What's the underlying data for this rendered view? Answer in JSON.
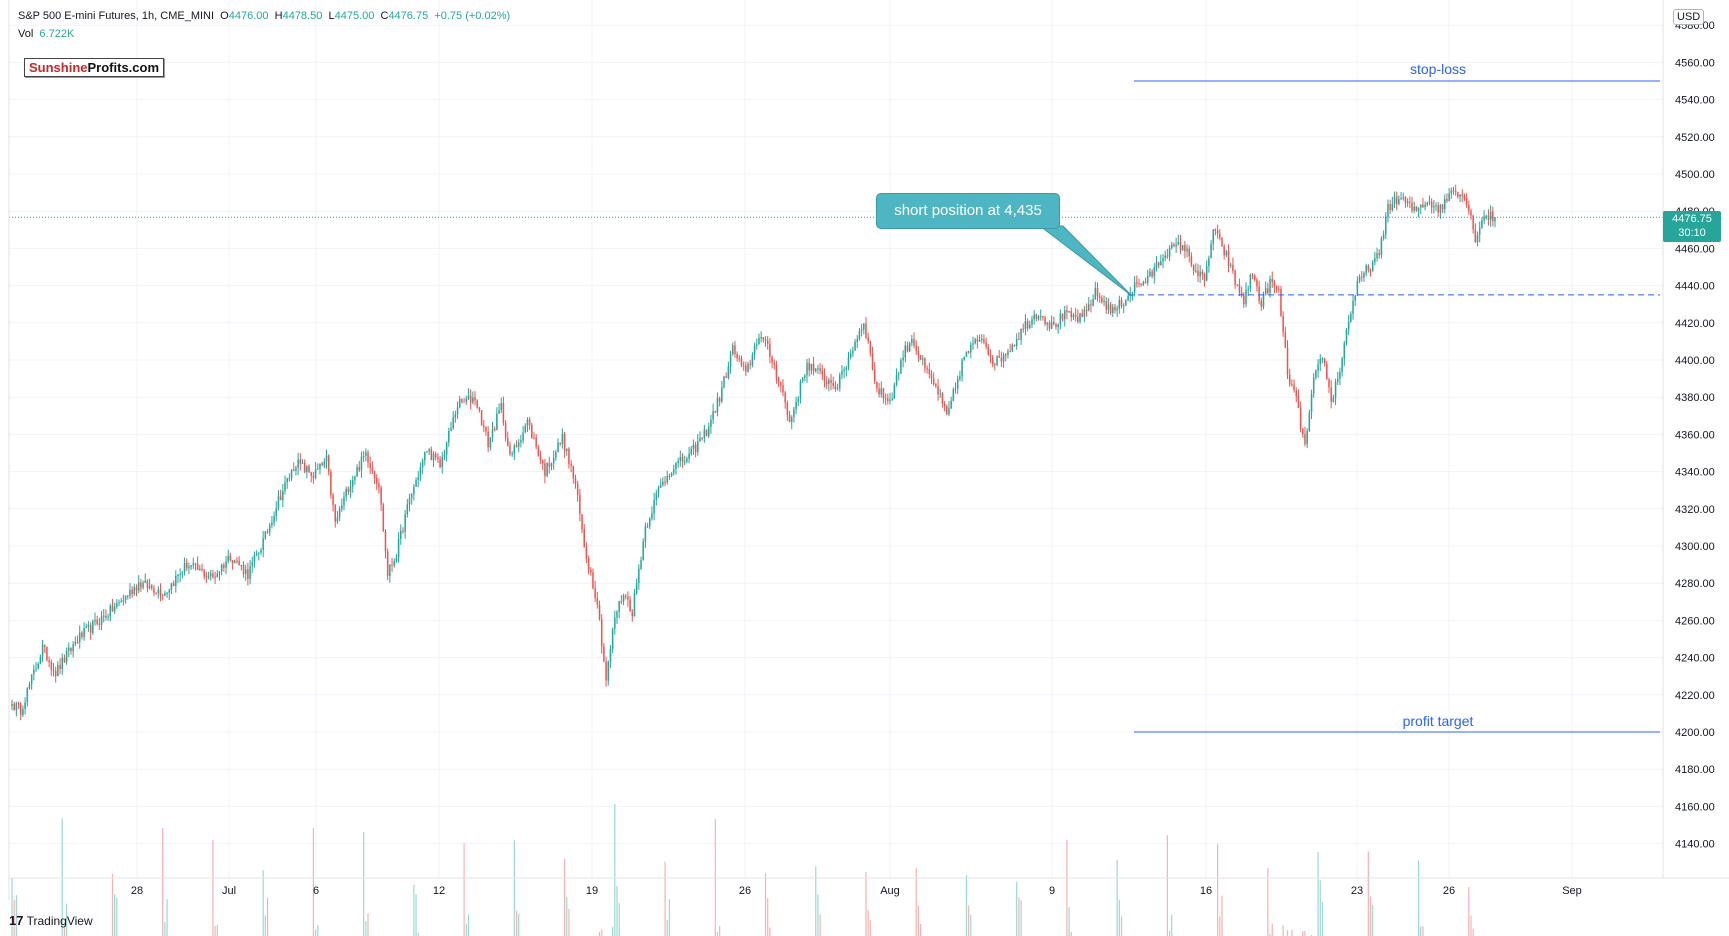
{
  "header": {
    "symbol": "S&P 500 E-mini Futures, 1h, CME_MINI",
    "o_label": "O",
    "o_value": "4476.00",
    "h_label": "H",
    "h_value": "4478.50",
    "l_label": "L",
    "l_value": "4475.00",
    "c_label": "C",
    "c_value": "4476.75",
    "change": "+0.75 (+0.02%)",
    "vol_label": "Vol",
    "vol_value": "6.722K"
  },
  "logo": {
    "part1": "Sunshine",
    "part2": "Profits.com"
  },
  "currency": "USD",
  "price_tag": {
    "price": "4476.75",
    "countdown": "30:10"
  },
  "footer": {
    "brand_mark": "17",
    "brand": "TradingView"
  },
  "colors": {
    "up": "#26a69a",
    "down": "#ef5350",
    "line": "#2962ff",
    "grid": "#f0f3fa"
  },
  "chart_data": {
    "type": "candlestick",
    "y_ticks": [
      4140,
      4160,
      4180,
      4200,
      4220,
      4240,
      4260,
      4280,
      4300,
      4320,
      4340,
      4360,
      4380,
      4400,
      4420,
      4440,
      4460,
      4480,
      4500,
      4520,
      4540,
      4560,
      4580
    ],
    "x_ticks": [
      "28",
      "Jul",
      "6",
      "12",
      "19",
      "26",
      "Aug",
      "9",
      "16",
      "23",
      "26",
      "Sep"
    ],
    "ylim": [
      4128,
      4592
    ],
    "last_price": 4476.75,
    "anchors": [
      [
        0,
        4215
      ],
      [
        4,
        4212
      ],
      [
        14,
        4245
      ],
      [
        20,
        4232
      ],
      [
        30,
        4250
      ],
      [
        48,
        4268
      ],
      [
        58,
        4280
      ],
      [
        70,
        4275
      ],
      [
        80,
        4290
      ],
      [
        92,
        4283
      ],
      [
        100,
        4295
      ],
      [
        108,
        4285
      ],
      [
        116,
        4305
      ],
      [
        122,
        4325
      ],
      [
        130,
        4345
      ],
      [
        138,
        4338
      ],
      [
        144,
        4346
      ],
      [
        148,
        4312
      ],
      [
        154,
        4332
      ],
      [
        162,
        4350
      ],
      [
        168,
        4333
      ],
      [
        172,
        4285
      ],
      [
        176,
        4296
      ],
      [
        182,
        4325
      ],
      [
        190,
        4352
      ],
      [
        196,
        4343
      ],
      [
        204,
        4376
      ],
      [
        212,
        4380
      ],
      [
        218,
        4355
      ],
      [
        224,
        4375
      ],
      [
        228,
        4347
      ],
      [
        236,
        4367
      ],
      [
        244,
        4340
      ],
      [
        252,
        4358
      ],
      [
        258,
        4333
      ],
      [
        262,
        4300
      ],
      [
        268,
        4270
      ],
      [
        272,
        4228
      ],
      [
        276,
        4262
      ],
      [
        280,
        4275
      ],
      [
        284,
        4265
      ],
      [
        290,
        4310
      ],
      [
        296,
        4330
      ],
      [
        302,
        4342
      ],
      [
        310,
        4348
      ],
      [
        318,
        4362
      ],
      [
        324,
        4380
      ],
      [
        330,
        4406
      ],
      [
        336,
        4392
      ],
      [
        342,
        4414
      ],
      [
        346,
        4406
      ],
      [
        352,
        4387
      ],
      [
        356,
        4366
      ],
      [
        364,
        4398
      ],
      [
        372,
        4390
      ],
      [
        378,
        4386
      ],
      [
        384,
        4404
      ],
      [
        390,
        4421
      ],
      [
        396,
        4384
      ],
      [
        402,
        4378
      ],
      [
        408,
        4403
      ],
      [
        412,
        4412
      ],
      [
        418,
        4395
      ],
      [
        424,
        4383
      ],
      [
        428,
        4369
      ],
      [
        436,
        4402
      ],
      [
        444,
        4413
      ],
      [
        450,
        4398
      ],
      [
        458,
        4408
      ],
      [
        464,
        4419
      ],
      [
        470,
        4426
      ],
      [
        476,
        4418
      ],
      [
        482,
        4424
      ],
      [
        490,
        4422
      ],
      [
        496,
        4436
      ],
      [
        504,
        4426
      ],
      [
        510,
        4433
      ],
      [
        514,
        4440
      ],
      [
        520,
        4443
      ],
      [
        528,
        4458
      ],
      [
        536,
        4462
      ],
      [
        542,
        4448
      ],
      [
        546,
        4442
      ],
      [
        550,
        4470
      ],
      [
        556,
        4456
      ],
      [
        560,
        4442
      ],
      [
        564,
        4432
      ],
      [
        568,
        4447
      ],
      [
        572,
        4430
      ],
      [
        576,
        4442
      ],
      [
        580,
        4436
      ],
      [
        584,
        4393
      ],
      [
        588,
        4378
      ],
      [
        592,
        4353
      ],
      [
        596,
        4388
      ],
      [
        600,
        4403
      ],
      [
        604,
        4378
      ],
      [
        608,
        4395
      ],
      [
        612,
        4422
      ],
      [
        616,
        4440
      ],
      [
        620,
        4448
      ],
      [
        626,
        4456
      ],
      [
        630,
        4483
      ],
      [
        636,
        4487
      ],
      [
        642,
        4480
      ],
      [
        648,
        4486
      ],
      [
        654,
        4481
      ],
      [
        660,
        4493
      ],
      [
        666,
        4486
      ],
      [
        670,
        4466
      ],
      [
        674,
        4478
      ],
      [
        678,
        4476.75
      ]
    ],
    "annotations": [
      {
        "type": "hline",
        "label": "stop-loss",
        "y": 4550
      },
      {
        "type": "hline",
        "label": "profit target",
        "y": 4200
      },
      {
        "type": "dashed",
        "y": 4435
      },
      {
        "type": "callout",
        "text": "short position at 4,435",
        "y": 4435
      }
    ]
  }
}
